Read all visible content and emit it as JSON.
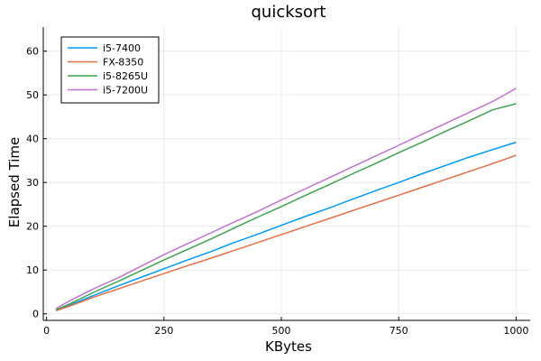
{
  "chart_data": {
    "type": "line",
    "title": "quicksort",
    "xlabel": "KBytes",
    "ylabel": "Elapsed Time",
    "xlim": [
      0,
      1000
    ],
    "ylim": [
      0,
      65
    ],
    "x_ticks": [
      0,
      250,
      500,
      750,
      1000
    ],
    "y_ticks": [
      0,
      10,
      20,
      30,
      40,
      50,
      60
    ],
    "grid": true,
    "legend_position": "top-left",
    "x": [
      20,
      50,
      100,
      150,
      200,
      250,
      300,
      350,
      400,
      450,
      500,
      550,
      600,
      650,
      700,
      750,
      800,
      850,
      900,
      950,
      1000
    ],
    "series": [
      {
        "name": "i5-7400",
        "color": "#009af9",
        "values": [
          0.8,
          2.0,
          4.2,
          6.3,
          8.3,
          10.3,
          12.3,
          14.2,
          16.3,
          18.2,
          20.2,
          22.2,
          24.1,
          26.1,
          28.1,
          30.0,
          32.0,
          33.9,
          35.8,
          37.5,
          39.2
        ]
      },
      {
        "name": "FX-8350",
        "color": "#e26f46",
        "values": [
          0.7,
          1.8,
          3.8,
          5.6,
          7.4,
          9.2,
          11.0,
          12.7,
          14.5,
          16.3,
          18.1,
          19.9,
          21.7,
          23.5,
          25.3,
          27.1,
          28.9,
          30.7,
          32.5,
          34.3,
          36.2
        ]
      },
      {
        "name": "i5-8265U",
        "color": "#3da44d",
        "values": [
          0.9,
          2.3,
          4.9,
          7.3,
          9.8,
          12.3,
          14.7,
          17.1,
          19.6,
          22.1,
          24.5,
          27.0,
          29.4,
          31.9,
          34.3,
          36.8,
          39.2,
          41.7,
          44.1,
          46.6,
          48.0
        ]
      },
      {
        "name": "i5-7200U",
        "color": "#c271d2",
        "values": [
          1.2,
          3.0,
          5.7,
          8.1,
          10.8,
          13.5,
          16.0,
          18.5,
          21.0,
          23.4,
          26.0,
          28.5,
          31.0,
          33.5,
          36.0,
          38.5,
          41.0,
          43.5,
          46.0,
          48.5,
          51.5
        ]
      }
    ]
  }
}
